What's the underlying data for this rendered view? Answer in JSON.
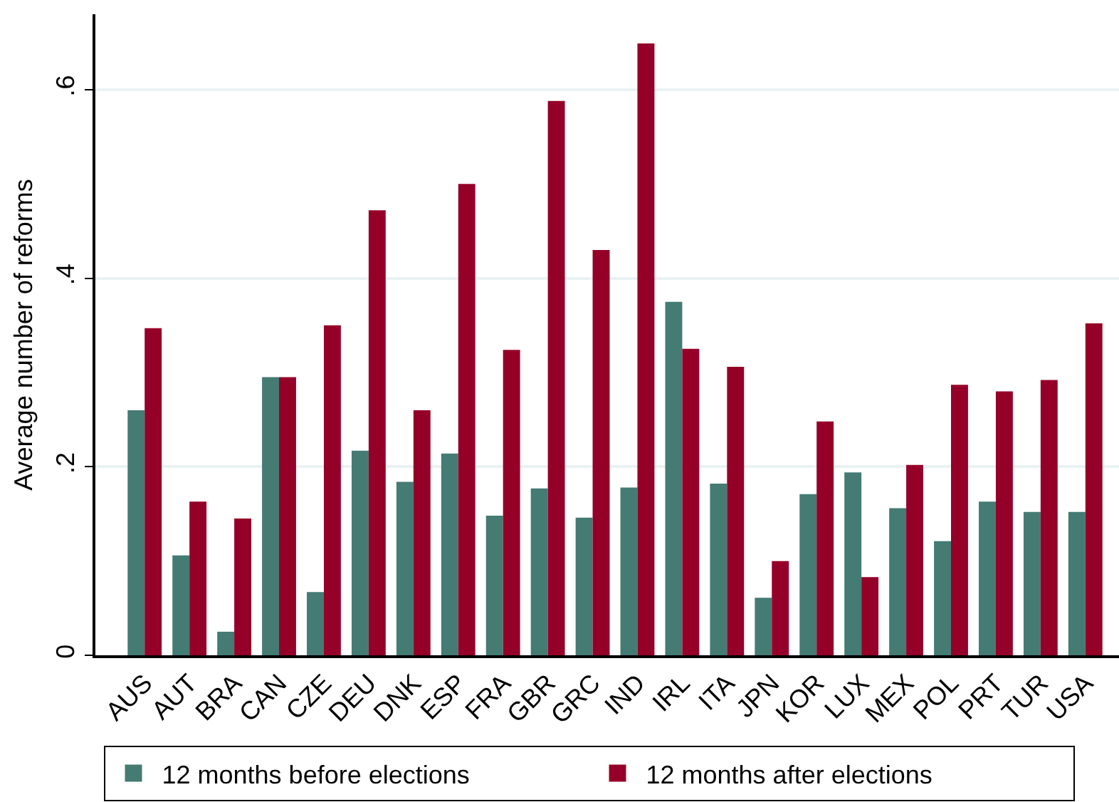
{
  "chart_data": {
    "type": "bar",
    "ylabel": "Average number of reforms",
    "categories": [
      "AUS",
      "AUT",
      "BRA",
      "CAN",
      "CZE",
      "DEU",
      "DNK",
      "ESP",
      "FRA",
      "GBR",
      "GRC",
      "IND",
      "IRL",
      "ITA",
      "JPN",
      "KOR",
      "LUX",
      "MEX",
      "POL",
      "PRT",
      "TUR",
      "USA"
    ],
    "series": [
      {
        "name": "12 months before elections",
        "color": "#447b73",
        "values": [
          0.26,
          0.106,
          0.025,
          0.295,
          0.067,
          0.217,
          0.184,
          0.214,
          0.148,
          0.177,
          0.146,
          0.178,
          0.375,
          0.182,
          0.061,
          0.171,
          0.194,
          0.156,
          0.121,
          0.163,
          0.152,
          0.152
        ]
      },
      {
        "name": "12 months after elections",
        "color": "#950028",
        "values": [
          0.347,
          0.163,
          0.145,
          0.295,
          0.35,
          0.472,
          0.26,
          0.5,
          0.324,
          0.588,
          0.43,
          0.649,
          0.325,
          0.306,
          0.1,
          0.248,
          0.083,
          0.202,
          0.287,
          0.28,
          0.292,
          0.352
        ]
      }
    ],
    "ylim": [
      0,
      0.68
    ],
    "yticks": [
      0,
      {
        "value": 0.2,
        "label": ".2"
      },
      {
        "value": 0.4,
        "label": ".4"
      },
      {
        "value": 0.6,
        "label": ".6"
      }
    ],
    "grid": "y",
    "legend": "bottom"
  }
}
